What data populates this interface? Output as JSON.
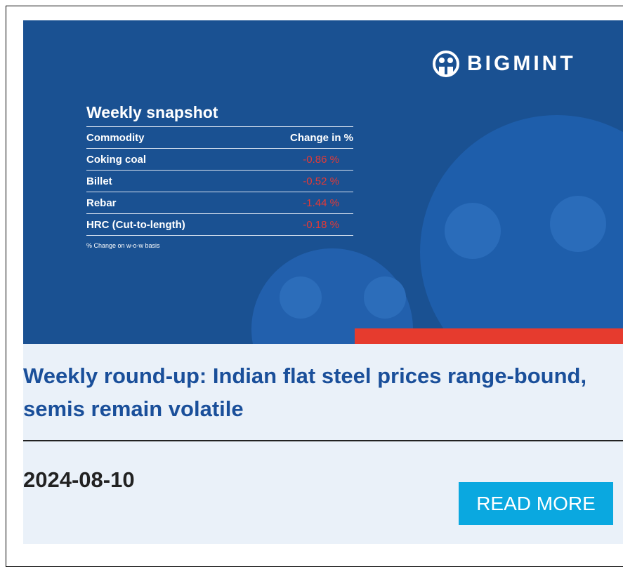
{
  "banner": {
    "logo": "BIGMINT",
    "snapshot": {
      "title": "Weekly snapshot",
      "columns": [
        "Commodity",
        "Change in %"
      ],
      "rows": [
        [
          "Coking coal",
          "-0.86 %"
        ],
        [
          "Billet",
          "-0.52 %"
        ],
        [
          "Rebar",
          "-1.44 %"
        ],
        [
          "HRC (Cut-to-length)",
          "-0.18 %"
        ]
      ],
      "note": "% Change on w-o-w basis"
    }
  },
  "article": {
    "title": "Weekly round-up: Indian flat steel prices range-bound, semis remain volatile",
    "date": "2024-08-10",
    "button": "READ MORE"
  }
}
